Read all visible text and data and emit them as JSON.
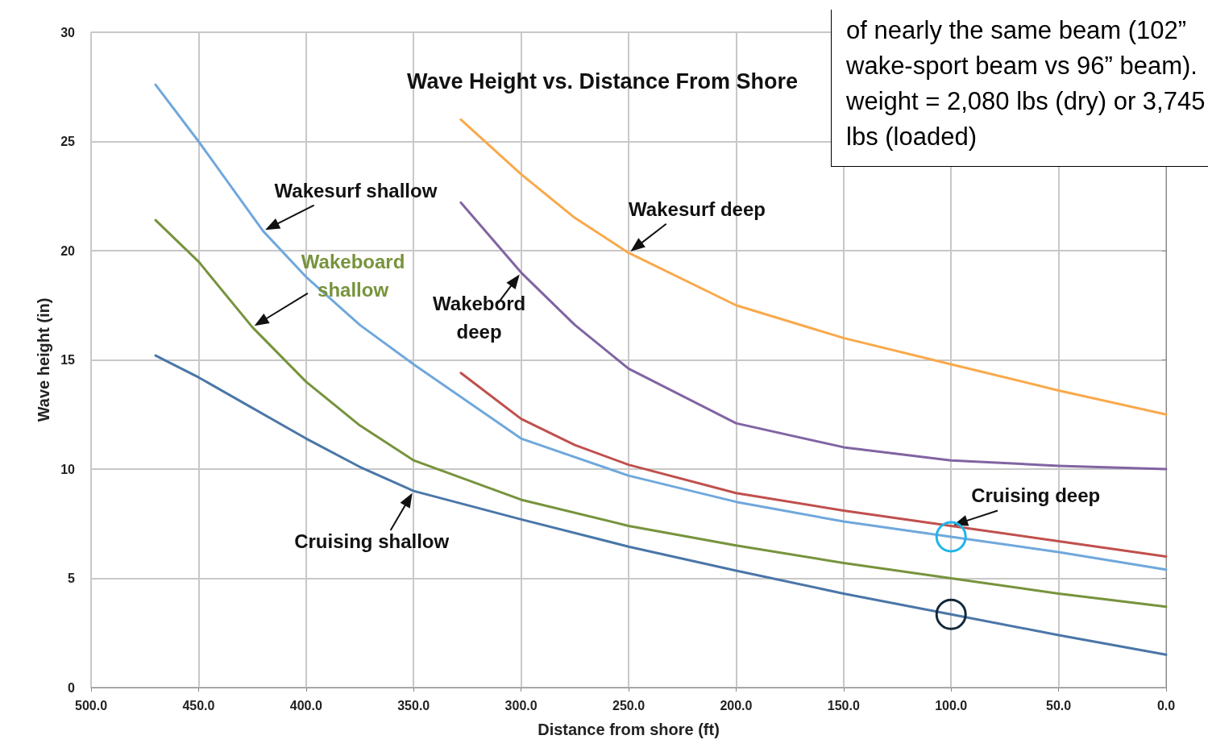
{
  "chart_data": {
    "type": "line",
    "title": "Wave Height vs. Distance From Shore",
    "xlabel": "Distance from shore (ft)",
    "ylabel": "Wave height (in)",
    "xlim": [
      500,
      0
    ],
    "xticks": [
      {
        "value": 500,
        "label": "500.0"
      },
      {
        "value": 450,
        "label": "450.0"
      },
      {
        "value": 400,
        "label": "400.0"
      },
      {
        "value": 350,
        "label": "350.0"
      },
      {
        "value": 300,
        "label": "300.0"
      },
      {
        "value": 250,
        "label": "250.0"
      },
      {
        "value": 200,
        "label": "200.0"
      },
      {
        "value": 150,
        "label": "150.0"
      },
      {
        "value": 100,
        "label": "100.0"
      },
      {
        "value": 50,
        "label": "50.0"
      },
      {
        "value": 0,
        "label": "0.0"
      }
    ],
    "ylim": [
      0,
      30
    ],
    "yticks": [
      0,
      5,
      10,
      15,
      20,
      25,
      30
    ],
    "grid": true,
    "legend": false,
    "marker": "none",
    "line_style": "solid",
    "series": [
      {
        "name": "Cruising shallow",
        "color": "#4a76a8",
        "x": [
          470,
          450,
          425,
          400,
          375,
          350,
          300,
          250,
          200,
          150,
          100,
          50,
          0
        ],
        "values": [
          15.2,
          14.2,
          12.8,
          11.4,
          10.1,
          9.0,
          7.7,
          6.45,
          5.35,
          4.3,
          3.35,
          2.4,
          1.5
        ]
      },
      {
        "name": "Wakeboard shallow",
        "color": "#77933c",
        "x": [
          470,
          450,
          425,
          400,
          375,
          350,
          300,
          250,
          200,
          150,
          100,
          50,
          0
        ],
        "values": [
          21.4,
          19.5,
          16.5,
          14.0,
          12.0,
          10.4,
          8.6,
          7.4,
          6.5,
          5.7,
          5.0,
          4.3,
          3.7
        ]
      },
      {
        "name": "Wakesurf shallow",
        "color": "#6fa8dc",
        "x": [
          470,
          450,
          420,
          400,
          375,
          350,
          300,
          250,
          200,
          150,
          100,
          50,
          0
        ],
        "values": [
          27.6,
          25.0,
          20.9,
          18.8,
          16.6,
          14.8,
          11.4,
          9.7,
          8.5,
          7.6,
          6.9,
          6.2,
          5.4
        ]
      },
      {
        "name": "Cruising deep",
        "color": "#c0504d",
        "x": [
          328,
          300,
          275,
          250,
          200,
          150,
          100,
          50,
          0
        ],
        "values": [
          14.4,
          12.3,
          11.1,
          10.2,
          8.9,
          8.1,
          7.4,
          6.7,
          6.0
        ]
      },
      {
        "name": "Wakebord deep",
        "color": "#8064a2",
        "x": [
          328,
          300,
          275,
          250,
          200,
          150,
          100,
          50,
          0
        ],
        "values": [
          22.2,
          19.0,
          16.6,
          14.6,
          12.1,
          11.0,
          10.4,
          10.15,
          10.0
        ]
      },
      {
        "name": "Wakesurf deep",
        "color": "#f9a94b",
        "x": [
          328,
          300,
          275,
          250,
          200,
          150,
          100,
          50,
          0
        ],
        "values": [
          26.0,
          23.5,
          21.5,
          19.9,
          17.5,
          16.0,
          14.8,
          13.6,
          12.5
        ]
      }
    ],
    "annotations": [
      "of nearly the same beam (102” wake-sport beam vs 96” beam). weight = 2,080 lbs (dry) or 3,745 lbs (loaded)"
    ]
  }
}
